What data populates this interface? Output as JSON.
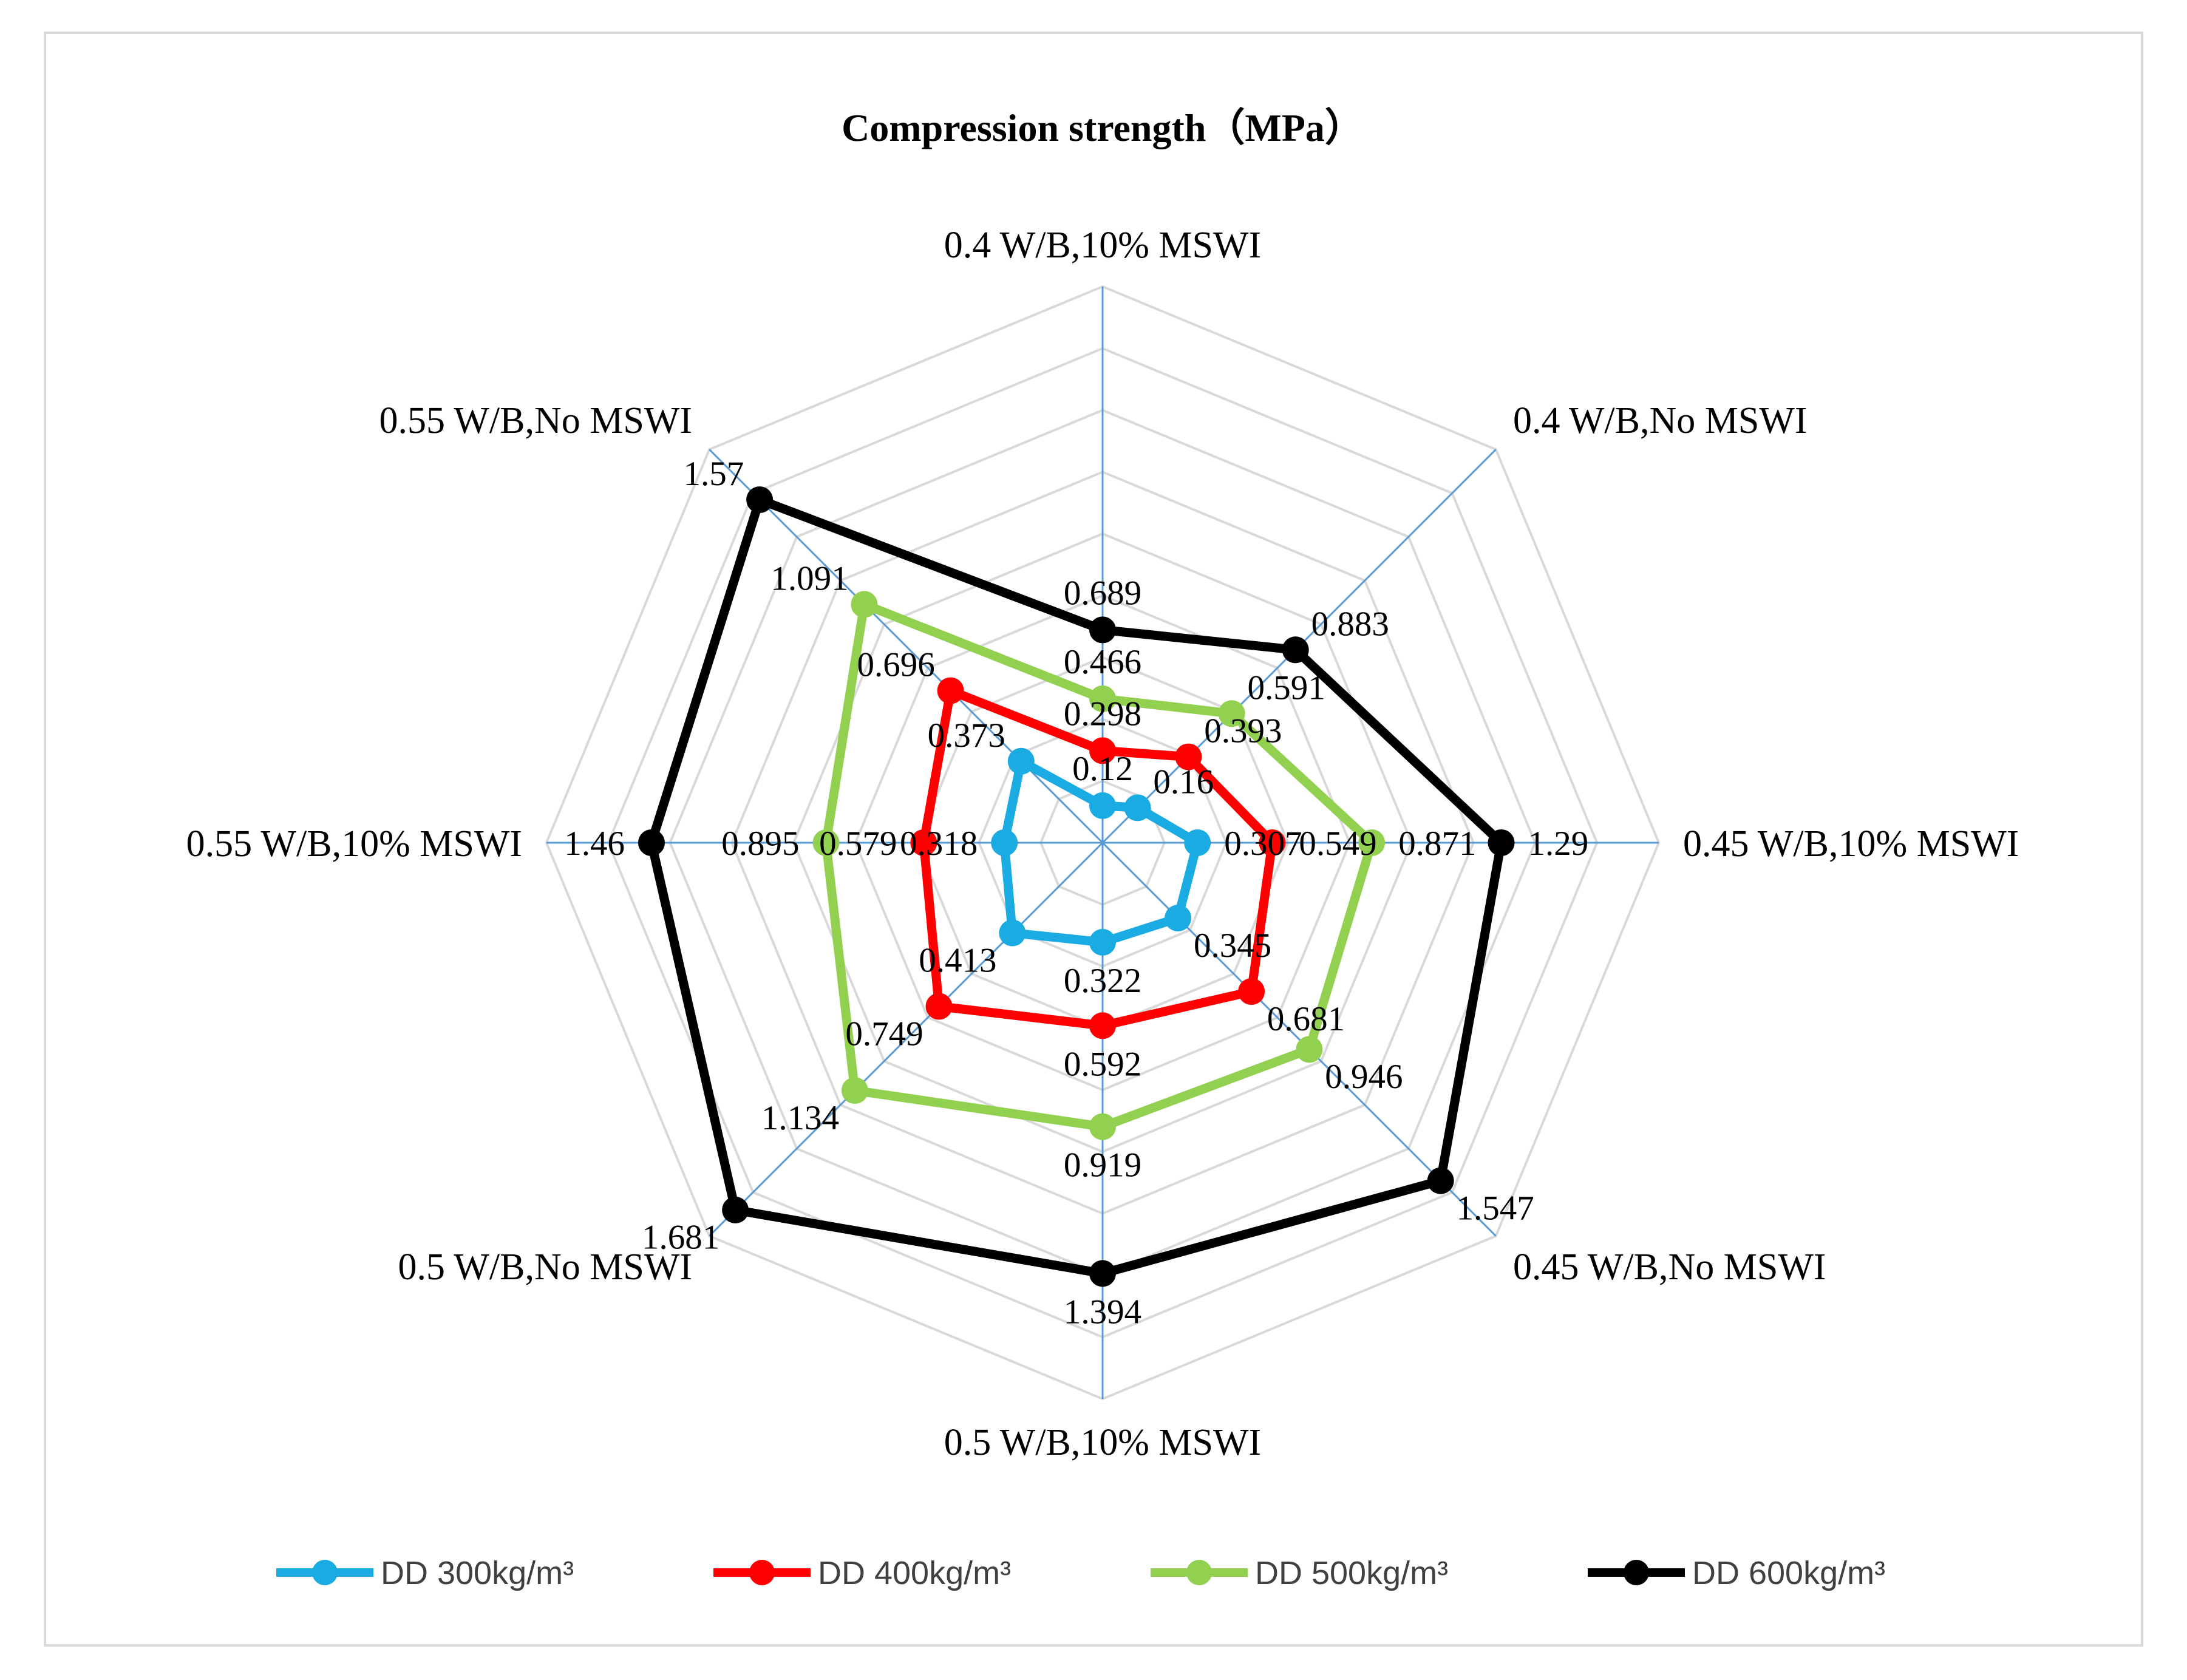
{
  "chart_data": {
    "type": "radar",
    "title": "Compression strength（MPa）",
    "categories": [
      "0.4 W/B,10% MSWI",
      "0.4 W/B,No MSWI",
      "0.45 W/B,10% MSWI",
      "0.45 W/B,No MSWI",
      "0.5 W/B,10% MSWI",
      "0.5 W/B,No MSWI",
      "0.55 W/B,10% MSWI",
      "0.55 W/B,No MSWI"
    ],
    "rmax": 1.8,
    "grid_step": 0.2,
    "legend_position": "bottom",
    "series": [
      {
        "name": "DD 300kg/m³",
        "color": "#1aabe3",
        "values": [
          0.12,
          0.16,
          0.307,
          0.345,
          0.322,
          0.413,
          0.318,
          0.373
        ],
        "labels": [
          "0.12",
          "0.16",
          "0.307",
          "0.345",
          "0.322",
          "0.413",
          "0.318",
          "0.373"
        ]
      },
      {
        "name": "DD 400kg/m³",
        "color": "#ff0000",
        "values": [
          0.298,
          0.393,
          0.549,
          0.681,
          0.592,
          0.749,
          0.579,
          0.696
        ],
        "labels": [
          "0.298",
          "0.393",
          "0.549",
          "0.681",
          "0.592",
          "0.749",
          "0.579",
          "0.696"
        ]
      },
      {
        "name": "DD 500kg/m³",
        "color": "#92d050",
        "values": [
          0.466,
          0.591,
          0.871,
          0.946,
          0.919,
          1.134,
          0.895,
          1.091
        ],
        "labels": [
          "0.466",
          "0.591",
          "0.871",
          "0.946",
          "0.919",
          "1.134",
          "0.895",
          "1.091"
        ]
      },
      {
        "name": "DD 600kg/m³",
        "color": "#000000",
        "values": [
          0.689,
          0.883,
          1.29,
          1.547,
          1.394,
          1.681,
          1.46,
          1.57
        ],
        "labels": [
          "0.689",
          "0.883",
          "1.29",
          "1.547",
          "1.394",
          "1.681",
          "1.46",
          "1.57"
        ]
      }
    ],
    "grid_color": "#d9d9d9",
    "axis_color": "#5b9bd5"
  }
}
